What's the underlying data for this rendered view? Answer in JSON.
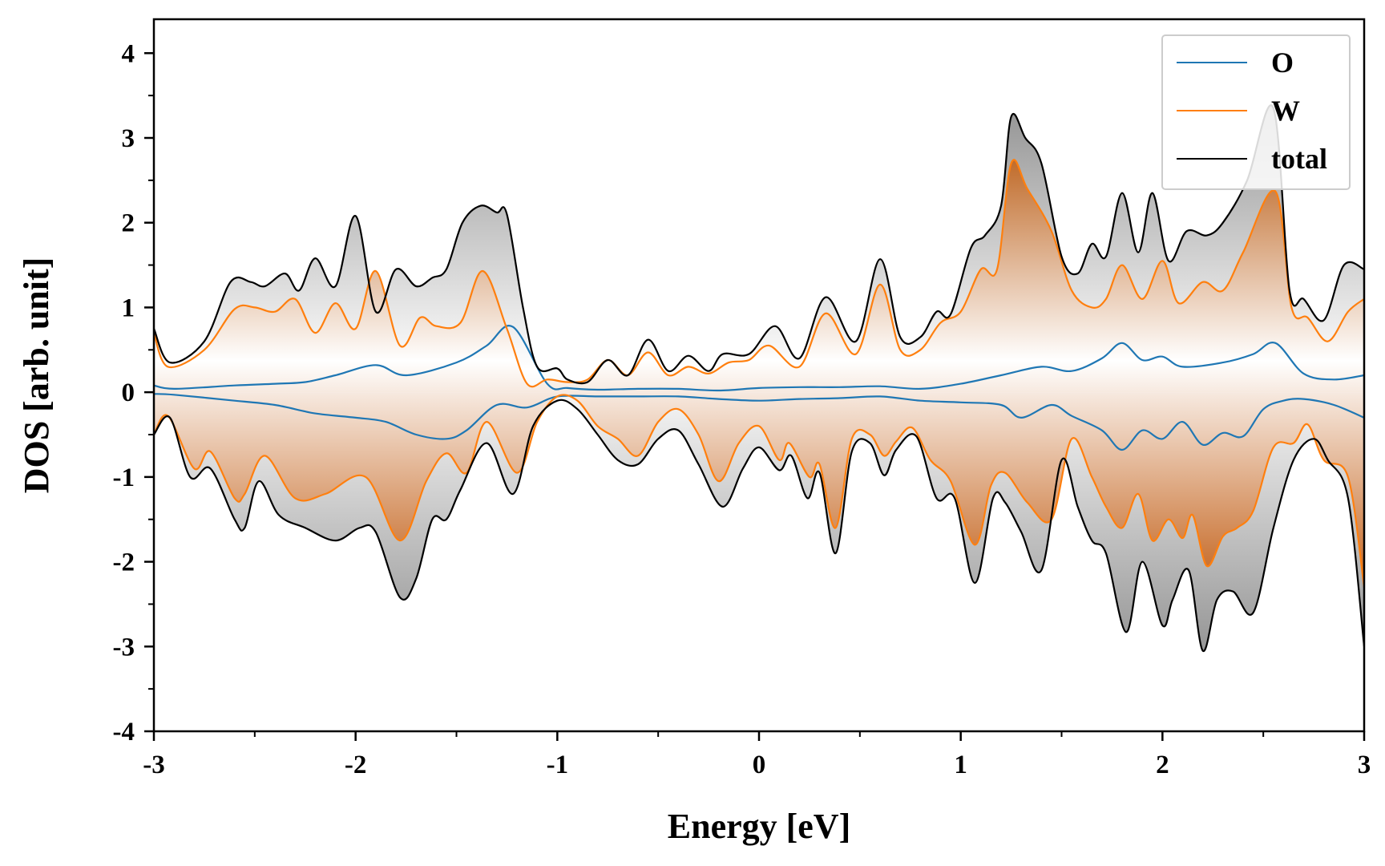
{
  "chart_data": {
    "type": "area",
    "title": "",
    "xlabel": "Energy [eV]",
    "ylabel": "DOS [arb. unit]",
    "xlim": [
      -3,
      3
    ],
    "ylim": [
      -4,
      4.4
    ],
    "xticks": [
      -3,
      -2,
      -1,
      0,
      1,
      2,
      3
    ],
    "xtick_labels": [
      "-3",
      "-2",
      "-1",
      "0",
      "1",
      "2",
      "3"
    ],
    "yticks": [
      4,
      3,
      2,
      1,
      0,
      -1,
      -2,
      -3,
      -4
    ],
    "ytick_labels": [
      "4",
      "3",
      "2",
      "1",
      "0",
      "-1",
      "-2",
      "-3",
      "-4"
    ],
    "legend_position": "top-right",
    "grid": false,
    "series": [
      {
        "name": "O",
        "color": "#1f77b4",
        "fill": false,
        "up": {
          "x": [
            -3,
            -2.9,
            -2.6,
            -2.4,
            -2.25,
            -2.1,
            -1.9,
            -1.75,
            -1.5,
            -1.35,
            -1.22,
            -1.05,
            -0.95,
            -0.8,
            -0.6,
            -0.4,
            -0.2,
            0,
            0.2,
            0.4,
            0.6,
            0.8,
            1,
            1.2,
            1.4,
            1.55,
            1.7,
            1.8,
            1.9,
            2.0,
            2.1,
            2.3,
            2.45,
            2.56,
            2.7,
            2.85,
            3
          ],
          "y": [
            0.08,
            0.04,
            0.08,
            0.1,
            0.12,
            0.2,
            0.32,
            0.2,
            0.35,
            0.55,
            0.77,
            0.1,
            0.05,
            0.03,
            0.04,
            0.04,
            0.02,
            0.05,
            0.06,
            0.06,
            0.07,
            0.04,
            0.1,
            0.2,
            0.3,
            0.25,
            0.4,
            0.58,
            0.38,
            0.42,
            0.3,
            0.35,
            0.45,
            0.58,
            0.22,
            0.15,
            0.2
          ]
        },
        "down": {
          "x": [
            -3,
            -2.9,
            -2.6,
            -2.4,
            -2.2,
            -2.0,
            -1.85,
            -1.7,
            -1.55,
            -1.45,
            -1.3,
            -1.15,
            -1.0,
            -0.8,
            -0.6,
            -0.4,
            -0.2,
            0,
            0.2,
            0.4,
            0.6,
            0.8,
            1,
            1.2,
            1.3,
            1.45,
            1.55,
            1.7,
            1.8,
            1.9,
            2.0,
            2.1,
            2.2,
            2.3,
            2.4,
            2.5,
            2.6,
            2.7,
            2.85,
            3
          ],
          "y": [
            -0.02,
            -0.03,
            -0.1,
            -0.15,
            -0.25,
            -0.3,
            -0.35,
            -0.5,
            -0.55,
            -0.45,
            -0.15,
            -0.18,
            -0.05,
            -0.05,
            -0.05,
            -0.05,
            -0.08,
            -0.1,
            -0.08,
            -0.07,
            -0.05,
            -0.1,
            -0.12,
            -0.15,
            -0.3,
            -0.15,
            -0.28,
            -0.45,
            -0.68,
            -0.45,
            -0.55,
            -0.35,
            -0.62,
            -0.48,
            -0.52,
            -0.2,
            -0.1,
            -0.08,
            -0.15,
            -0.3
          ]
        }
      },
      {
        "name": "W",
        "color": "#ff7f0e",
        "fill": true,
        "up": {
          "x": [
            -3,
            -2.93,
            -2.75,
            -2.6,
            -2.5,
            -2.4,
            -2.3,
            -2.2,
            -2.1,
            -2.0,
            -1.9,
            -1.78,
            -1.68,
            -1.6,
            -1.48,
            -1.37,
            -1.25,
            -1.15,
            -1.05,
            -0.95,
            -0.85,
            -0.75,
            -0.65,
            -0.55,
            -0.45,
            -0.35,
            -0.25,
            -0.15,
            -0.05,
            0.05,
            0.2,
            0.33,
            0.48,
            0.6,
            0.7,
            0.8,
            0.9,
            1.0,
            1.1,
            1.18,
            1.25,
            1.33,
            1.45,
            1.55,
            1.65,
            1.72,
            1.8,
            1.9,
            2.0,
            2.08,
            2.2,
            2.3,
            2.4,
            2.56,
            2.64,
            2.72,
            2.82,
            2.92,
            3
          ],
          "y": [
            0.7,
            0.3,
            0.5,
            0.98,
            1.0,
            0.95,
            1.1,
            0.7,
            1.05,
            0.75,
            1.43,
            0.55,
            0.88,
            0.78,
            0.82,
            1.43,
            0.75,
            0.1,
            0.15,
            0.12,
            0.15,
            0.38,
            0.2,
            0.47,
            0.2,
            0.3,
            0.22,
            0.35,
            0.38,
            0.55,
            0.3,
            0.93,
            0.45,
            1.27,
            0.5,
            0.5,
            0.82,
            0.95,
            1.45,
            1.45,
            2.7,
            2.4,
            1.9,
            1.2,
            1.0,
            1.1,
            1.5,
            1.1,
            1.55,
            1.05,
            1.3,
            1.2,
            1.65,
            2.37,
            1.0,
            0.88,
            0.6,
            0.95,
            1.1
          ]
        },
        "down": {
          "x": [
            -3,
            -2.93,
            -2.8,
            -2.72,
            -2.6,
            -2.55,
            -2.45,
            -2.3,
            -2.15,
            -1.95,
            -1.78,
            -1.65,
            -1.55,
            -1.45,
            -1.35,
            -1.2,
            -1.1,
            -1.0,
            -0.9,
            -0.8,
            -0.7,
            -0.6,
            -0.5,
            -0.4,
            -0.3,
            -0.2,
            -0.1,
            0,
            0.1,
            0.15,
            0.25,
            0.3,
            0.38,
            0.46,
            0.55,
            0.62,
            0.68,
            0.76,
            0.85,
            0.95,
            1.07,
            1.15,
            1.22,
            1.33,
            1.45,
            1.55,
            1.65,
            1.72,
            1.8,
            1.88,
            1.95,
            2.03,
            2.1,
            2.15,
            2.22,
            2.3,
            2.37,
            2.45,
            2.55,
            2.65,
            2.72,
            2.8,
            2.92,
            3
          ],
          "y": [
            -0.5,
            -0.28,
            -0.9,
            -0.7,
            -1.25,
            -1.2,
            -0.75,
            -1.25,
            -1.2,
            -1.0,
            -1.75,
            -1.05,
            -0.72,
            -0.95,
            -0.35,
            -0.95,
            -0.35,
            -0.05,
            -0.1,
            -0.4,
            -0.55,
            -0.75,
            -0.35,
            -0.2,
            -0.5,
            -1.05,
            -0.6,
            -0.4,
            -0.8,
            -0.6,
            -1.0,
            -0.85,
            -1.6,
            -0.55,
            -0.5,
            -0.75,
            -0.58,
            -0.42,
            -0.8,
            -1.05,
            -1.8,
            -1.1,
            -0.95,
            -1.3,
            -1.5,
            -0.55,
            -1.0,
            -1.35,
            -1.6,
            -1.2,
            -1.75,
            -1.5,
            -1.72,
            -1.45,
            -2.05,
            -1.7,
            -1.6,
            -1.4,
            -0.65,
            -0.6,
            -0.38,
            -0.8,
            -1.0,
            -2.3
          ]
        }
      },
      {
        "name": "total",
        "color": "#000000",
        "fill": true,
        "up": {
          "x": [
            -3,
            -2.92,
            -2.75,
            -2.62,
            -2.52,
            -2.45,
            -2.35,
            -2.28,
            -2.2,
            -2.1,
            -2.0,
            -1.9,
            -1.8,
            -1.7,
            -1.62,
            -1.55,
            -1.47,
            -1.38,
            -1.3,
            -1.25,
            -1.17,
            -1.1,
            -1.0,
            -0.95,
            -0.85,
            -0.75,
            -0.65,
            -0.55,
            -0.45,
            -0.35,
            -0.25,
            -0.18,
            -0.05,
            0.08,
            0.2,
            0.33,
            0.48,
            0.6,
            0.7,
            0.8,
            0.88,
            0.95,
            1.05,
            1.12,
            1.2,
            1.25,
            1.32,
            1.4,
            1.5,
            1.58,
            1.65,
            1.72,
            1.8,
            1.88,
            1.95,
            2.03,
            2.12,
            2.22,
            2.3,
            2.42,
            2.55,
            2.63,
            2.7,
            2.8,
            2.9,
            3
          ],
          "y": [
            0.75,
            0.35,
            0.6,
            1.3,
            1.3,
            1.25,
            1.4,
            1.2,
            1.58,
            1.25,
            2.08,
            0.95,
            1.45,
            1.25,
            1.35,
            1.45,
            2.0,
            2.2,
            2.12,
            2.1,
            1.0,
            0.3,
            0.28,
            0.15,
            0.12,
            0.38,
            0.2,
            0.62,
            0.25,
            0.43,
            0.25,
            0.45,
            0.45,
            0.78,
            0.4,
            1.12,
            0.6,
            1.57,
            0.65,
            0.65,
            0.95,
            0.92,
            1.7,
            1.85,
            2.2,
            3.25,
            3.0,
            2.7,
            1.6,
            1.4,
            1.75,
            1.6,
            2.35,
            1.65,
            2.35,
            1.55,
            1.9,
            1.85,
            2.0,
            2.5,
            3.35,
            1.2,
            1.1,
            0.85,
            1.5,
            1.45
          ]
        },
        "down": {
          "x": [
            -3,
            -2.92,
            -2.82,
            -2.72,
            -2.6,
            -2.55,
            -2.48,
            -2.38,
            -2.25,
            -2.1,
            -1.98,
            -1.9,
            -1.78,
            -1.7,
            -1.62,
            -1.55,
            -1.48,
            -1.35,
            -1.22,
            -1.12,
            -1.0,
            -0.9,
            -0.8,
            -0.7,
            -0.6,
            -0.5,
            -0.4,
            -0.3,
            -0.18,
            -0.08,
            0,
            0.1,
            0.16,
            0.24,
            0.3,
            0.38,
            0.46,
            0.55,
            0.62,
            0.68,
            0.78,
            0.88,
            0.97,
            1.07,
            1.16,
            1.22,
            1.3,
            1.4,
            1.5,
            1.58,
            1.65,
            1.72,
            1.82,
            1.9,
            2.0,
            2.05,
            2.13,
            2.2,
            2.27,
            2.35,
            2.45,
            2.55,
            2.65,
            2.75,
            2.82,
            2.92,
            3
          ],
          "y": [
            -0.5,
            -0.3,
            -1.0,
            -0.9,
            -1.5,
            -1.6,
            -1.05,
            -1.45,
            -1.6,
            -1.75,
            -1.6,
            -1.65,
            -2.42,
            -2.2,
            -1.5,
            -1.5,
            -1.15,
            -0.6,
            -1.2,
            -0.4,
            -0.1,
            -0.2,
            -0.5,
            -0.8,
            -0.85,
            -0.55,
            -0.45,
            -0.85,
            -1.35,
            -0.9,
            -0.65,
            -0.92,
            -0.75,
            -1.25,
            -0.95,
            -1.9,
            -0.7,
            -0.6,
            -0.98,
            -0.68,
            -0.52,
            -1.25,
            -1.25,
            -2.25,
            -1.25,
            -1.3,
            -1.65,
            -2.1,
            -0.8,
            -1.35,
            -1.75,
            -1.9,
            -2.83,
            -2.0,
            -2.75,
            -2.45,
            -2.1,
            -3.05,
            -2.45,
            -2.35,
            -2.6,
            -1.6,
            -0.8,
            -0.55,
            -0.8,
            -1.25,
            -3.0
          ]
        }
      }
    ]
  }
}
